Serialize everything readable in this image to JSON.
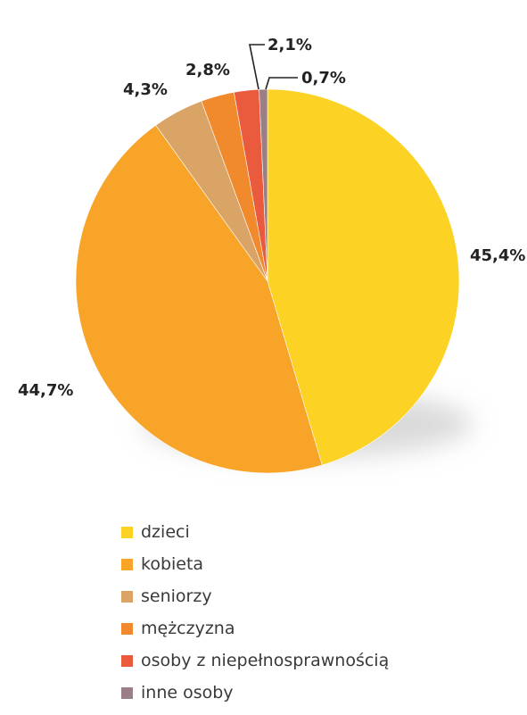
{
  "chart_data": {
    "type": "pie",
    "title": "",
    "legend_position": "bottom",
    "slices": [
      {
        "name": "dzieci",
        "value": 45.4,
        "label": "45,4%",
        "color": "#fcd224"
      },
      {
        "name": "kobieta",
        "value": 44.7,
        "label": "44,7%",
        "color": "#f7a428"
      },
      {
        "name": "seniorzy",
        "value": 4.3,
        "label": "4,3%",
        "color": "#d9a466"
      },
      {
        "name": "mężczyzna",
        "value": 2.8,
        "label": "2,8%",
        "color": "#f08a2c"
      },
      {
        "name": "osoby z niepełnosprawnością",
        "value": 2.1,
        "label": "2,1%",
        "color": "#ea5a3c"
      },
      {
        "name": "inne osoby",
        "value": 0.7,
        "label": "0,7%",
        "color": "#9a7f86"
      }
    ]
  }
}
